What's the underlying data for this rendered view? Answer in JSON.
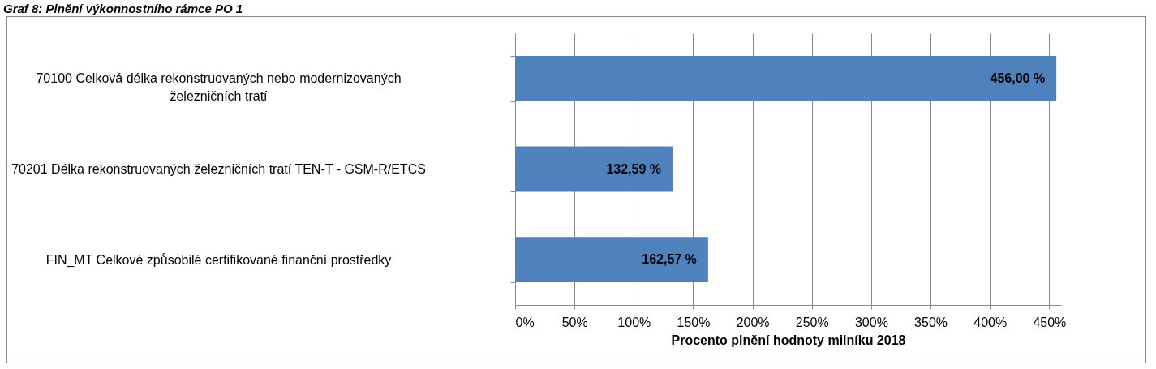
{
  "chart_data": {
    "type": "bar",
    "orientation": "horizontal",
    "title": "Graf 8: Plnění výkonnostního rámce PO 1",
    "categories": [
      "70100 Celková délka rekonstruovaných nebo modernizovaných\nželezničních tratí",
      "70201 Délka rekonstruovaných železničních tratí TEN-T - GSM-R/ETCS",
      "FIN_MT Celkové způsobilé certifikované finanční prostředky"
    ],
    "values": [
      456.0,
      132.59,
      162.57
    ],
    "value_labels": [
      "456,00 %",
      "132,59 %",
      "162,57 %"
    ],
    "color": "#4f81bd",
    "xlabel": "Procento plnění hodnoty  milníku 2018",
    "xlim": [
      0,
      460
    ],
    "xticks": [
      {
        "value": 0,
        "label": "0%"
      },
      {
        "value": 50,
        "label": "50%"
      },
      {
        "value": 100,
        "label": "100%"
      },
      {
        "value": 150,
        "label": "150%"
      },
      {
        "value": 200,
        "label": "200%"
      },
      {
        "value": 250,
        "label": "250%"
      },
      {
        "value": 300,
        "label": "300%"
      },
      {
        "value": 350,
        "label": "350%"
      },
      {
        "value": 400,
        "label": "400%"
      },
      {
        "value": 450,
        "label": "450%"
      }
    ],
    "grid": "x"
  }
}
